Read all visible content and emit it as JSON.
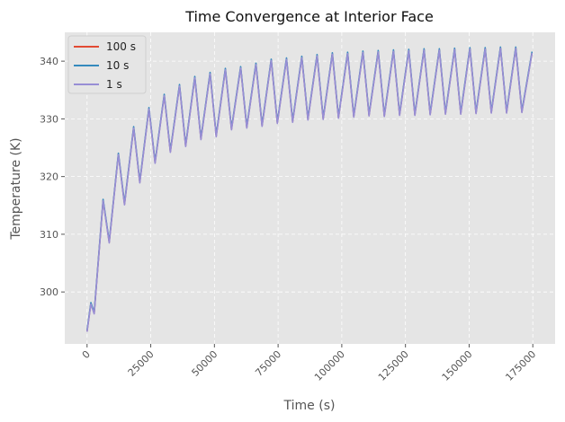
{
  "chart_data": {
    "type": "line",
    "title": "Time Convergence at Interior Face",
    "xlabel": "Time (s)",
    "ylabel": "Temperature (K)",
    "xlim": [
      -8750,
      183750
    ],
    "ylim": [
      291,
      345
    ],
    "xticks": [
      0,
      25000,
      50000,
      75000,
      100000,
      125000,
      150000,
      175000
    ],
    "xtick_labels": [
      "0",
      "25000",
      "50000",
      "75000",
      "100000",
      "125000",
      "150000",
      "175000"
    ],
    "yticks": [
      300,
      310,
      320,
      330,
      340
    ],
    "ytick_labels": [
      "300",
      "310",
      "320",
      "330",
      "340"
    ],
    "grid": true,
    "legend_position": "top-left",
    "series": [
      {
        "name": "100 s",
        "color": "#e24a33"
      },
      {
        "name": "10 s",
        "color": "#348abd"
      },
      {
        "name": "1 s",
        "color": "#988ed5"
      }
    ],
    "cycle_points": {
      "start_temp": 293.2,
      "times": [
        0,
        1500,
        2800,
        6300,
        8700,
        12300,
        14700,
        18300,
        20700,
        24300,
        26700,
        30300,
        32700,
        36300,
        38700,
        42300,
        44700,
        48300,
        50700,
        54300,
        56700,
        60300,
        62700,
        66300,
        68700,
        72300,
        74700,
        78300,
        80700,
        84300,
        86700,
        90300,
        92700,
        96300,
        98700,
        102300,
        104700,
        108300,
        110700,
        114300,
        116700,
        120300,
        122700,
        126300,
        128700,
        132300,
        134700,
        138300,
        140700,
        144300,
        146700,
        150300,
        152700,
        156300,
        158700,
        162300,
        164700,
        168300,
        170700,
        174700
      ],
      "temps": [
        293.2,
        298.0,
        296.3,
        315.9,
        308.6,
        323.9,
        315.2,
        328.5,
        319.0,
        331.8,
        322.4,
        334.1,
        324.3,
        335.8,
        325.3,
        337.2,
        326.5,
        337.9,
        327.0,
        338.6,
        328.2,
        338.9,
        328.5,
        339.5,
        328.8,
        340.2,
        329.3,
        340.4,
        329.5,
        340.7,
        329.9,
        341.0,
        330.0,
        341.3,
        330.2,
        341.4,
        330.4,
        341.6,
        330.6,
        341.7,
        330.5,
        341.8,
        330.7,
        341.9,
        330.7,
        342.0,
        330.8,
        342.0,
        330.9,
        342.1,
        330.9,
        342.2,
        331.0,
        342.2,
        331.1,
        342.3,
        331.1,
        342.3,
        331.2,
        341.5
      ]
    },
    "series_offsets": {
      "100 s": 0.0,
      "10 s": 0.15,
      "1 s": -0.1
    }
  }
}
